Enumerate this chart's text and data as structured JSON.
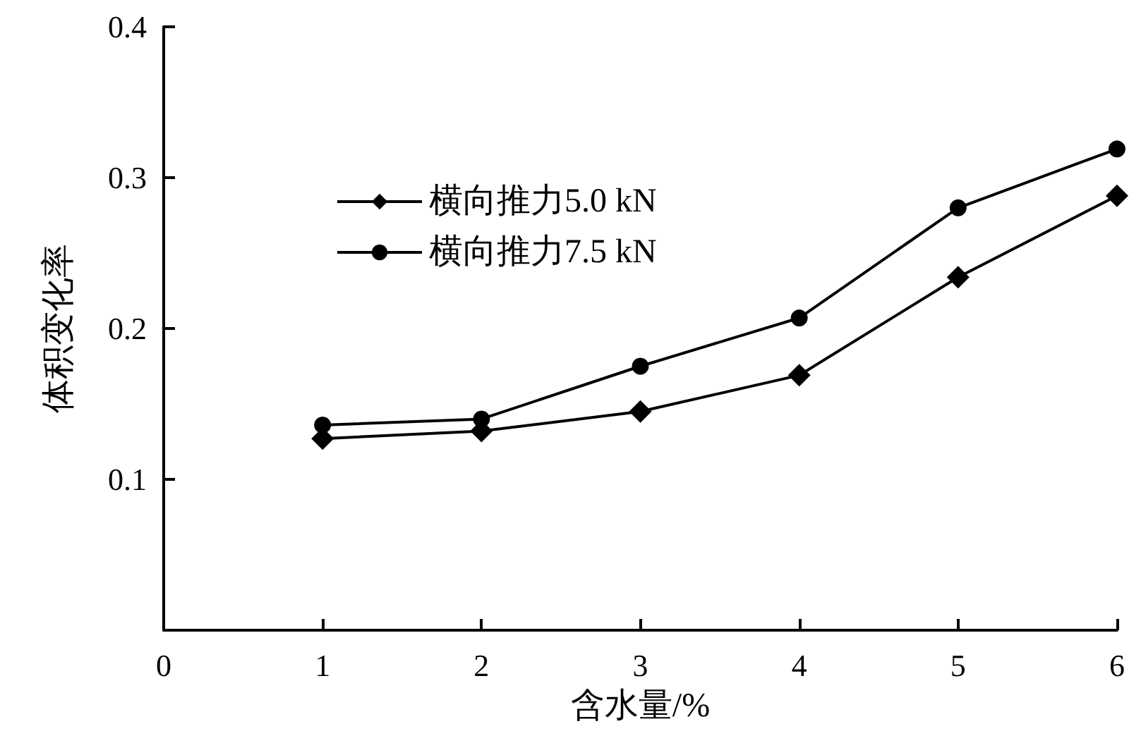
{
  "chart_data": {
    "type": "line",
    "xlabel": "含水量/%",
    "ylabel": "体积变化率",
    "x": [
      1,
      2,
      3,
      4,
      5,
      6
    ],
    "series": [
      {
        "name": "横向推力5.0 kN",
        "color": "#000000",
        "marker": "diamond",
        "values": [
          0.127,
          0.132,
          0.145,
          0.169,
          0.234,
          0.288
        ]
      },
      {
        "name": "横向推力7.5 kN",
        "color": "#000000",
        "marker": "circle",
        "values": [
          0.136,
          0.14,
          0.175,
          0.207,
          0.28,
          0.319
        ]
      }
    ],
    "xlim": [
      0,
      6
    ],
    "xticks": [
      0,
      1,
      2,
      3,
      4,
      5,
      6
    ],
    "ylim": [
      0,
      0.4
    ],
    "yticks": [
      0.1,
      0.2,
      0.3,
      0.4
    ],
    "grid": false,
    "legend": "top left",
    "line_style": "solid"
  }
}
